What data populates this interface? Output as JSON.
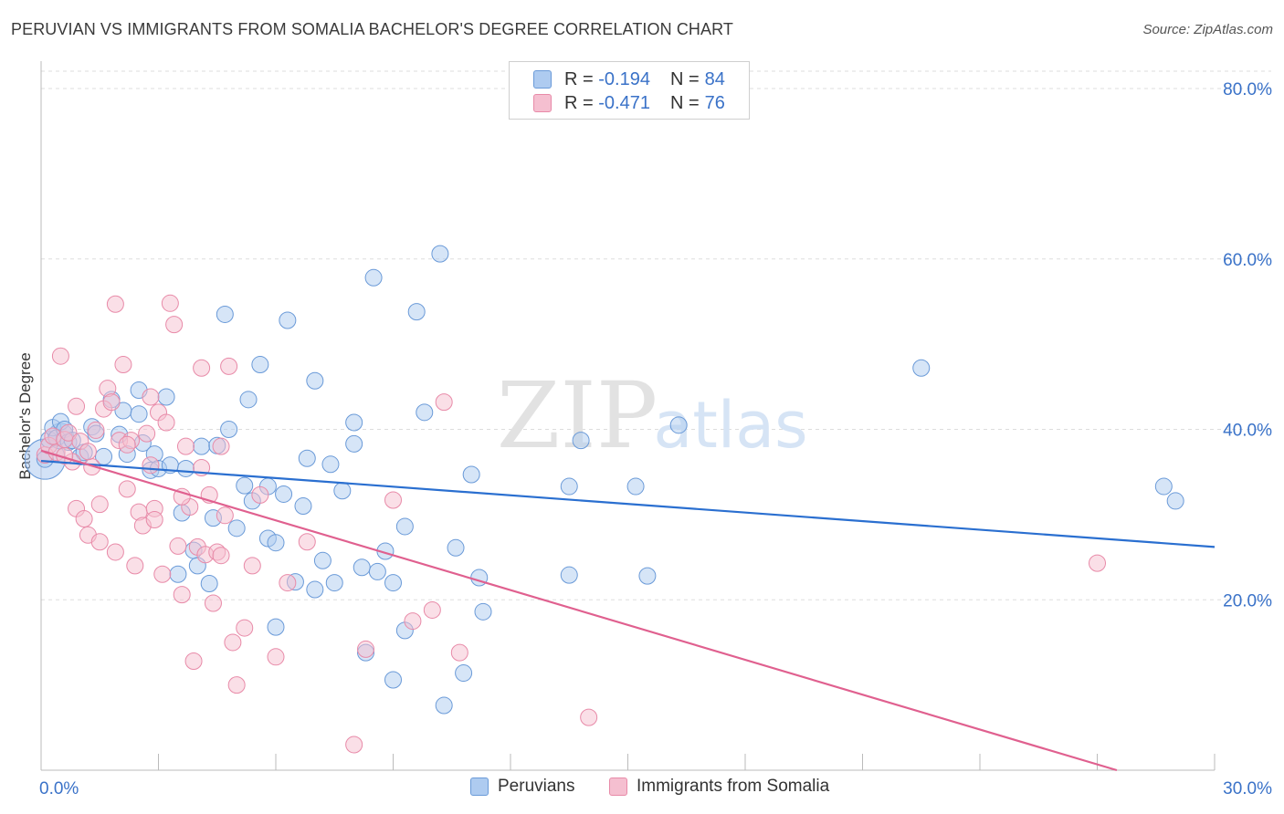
{
  "title": "PERUVIAN VS IMMIGRANTS FROM SOMALIA BACHELOR'S DEGREE CORRELATION CHART",
  "source": "Source: ZipAtlas.com",
  "watermark": {
    "zip": "ZIP",
    "atlas": "atlas"
  },
  "legend": {
    "rows": [
      {
        "r_label": "R =",
        "r_value": "-0.194",
        "n_label": "N =",
        "n_value": "84"
      },
      {
        "r_label": "R =",
        "r_value": "-0.471",
        "n_label": "N =",
        "n_value": "76"
      }
    ]
  },
  "colors": {
    "blue_fill": "#aecbf0",
    "blue_stroke": "#6a9ad8",
    "blue_line": "#2a6fd0",
    "pink_fill": "#f5bfd0",
    "pink_stroke": "#e88aa8",
    "pink_line": "#e0608f",
    "tick_label": "#3a72c8",
    "grid": "#dddddd"
  },
  "chart_data": {
    "type": "scatter",
    "title": "PERUVIAN VS IMMIGRANTS FROM SOMALIA BACHELOR'S DEGREE CORRELATION CHART",
    "xlabel": "",
    "ylabel": "Bachelor's Degree",
    "xlim": [
      0,
      30
    ],
    "ylim": [
      0,
      80
    ],
    "x_tick_labels": [
      "0.0%",
      "30.0%"
    ],
    "y_ticks": [
      20,
      40,
      60,
      80
    ],
    "y_tick_labels": [
      "20.0%",
      "40.0%",
      "60.0%",
      "80.0%"
    ],
    "grid": true,
    "series": [
      {
        "name": "Peruvians",
        "color": "#aecbf0",
        "r": -0.194,
        "n": 84,
        "trend": {
          "x": [
            0,
            30
          ],
          "y": [
            36.3,
            26.2
          ]
        },
        "points": [
          [
            0.1,
            36.5
          ],
          [
            0.2,
            38.8
          ],
          [
            0.3,
            40.2
          ],
          [
            0.4,
            39.0
          ],
          [
            0.5,
            40.9
          ],
          [
            0.6,
            40.0
          ],
          [
            0.7,
            38.5
          ],
          [
            0.8,
            38.7
          ],
          [
            1.0,
            36.8
          ],
          [
            1.1,
            37.3
          ],
          [
            1.3,
            40.3
          ],
          [
            1.4,
            39.5
          ],
          [
            1.6,
            36.8
          ],
          [
            1.8,
            43.5
          ],
          [
            2.0,
            39.4
          ],
          [
            2.1,
            42.2
          ],
          [
            2.2,
            37.1
          ],
          [
            2.5,
            41.8
          ],
          [
            2.5,
            44.6
          ],
          [
            2.6,
            38.4
          ],
          [
            2.8,
            35.2
          ],
          [
            2.9,
            37.1
          ],
          [
            3.0,
            35.4
          ],
          [
            3.2,
            43.8
          ],
          [
            3.3,
            35.8
          ],
          [
            3.5,
            23.0
          ],
          [
            3.6,
            30.2
          ],
          [
            3.7,
            35.4
          ],
          [
            3.9,
            25.8
          ],
          [
            4.0,
            24.0
          ],
          [
            4.1,
            38.0
          ],
          [
            4.3,
            21.9
          ],
          [
            4.4,
            29.6
          ],
          [
            4.5,
            38.1
          ],
          [
            4.7,
            53.5
          ],
          [
            4.8,
            40.0
          ],
          [
            5.0,
            28.4
          ],
          [
            5.2,
            33.4
          ],
          [
            5.3,
            43.5
          ],
          [
            5.4,
            31.6
          ],
          [
            5.6,
            47.6
          ],
          [
            5.8,
            33.3
          ],
          [
            5.8,
            27.2
          ],
          [
            6.0,
            26.7
          ],
          [
            6.0,
            16.8
          ],
          [
            6.2,
            32.4
          ],
          [
            6.3,
            52.8
          ],
          [
            6.5,
            22.1
          ],
          [
            6.7,
            31.0
          ],
          [
            6.8,
            36.6
          ],
          [
            7.0,
            21.2
          ],
          [
            7.0,
            45.7
          ],
          [
            7.2,
            24.6
          ],
          [
            7.4,
            35.9
          ],
          [
            7.5,
            22.0
          ],
          [
            7.7,
            32.8
          ],
          [
            8.0,
            38.3
          ],
          [
            8.0,
            40.8
          ],
          [
            8.2,
            23.8
          ],
          [
            8.3,
            13.8
          ],
          [
            8.5,
            57.8
          ],
          [
            8.6,
            23.3
          ],
          [
            8.8,
            25.7
          ],
          [
            9.0,
            22.0
          ],
          [
            9.0,
            10.6
          ],
          [
            9.3,
            28.6
          ],
          [
            9.3,
            16.4
          ],
          [
            9.6,
            53.8
          ],
          [
            9.8,
            42.0
          ],
          [
            10.2,
            60.6
          ],
          [
            10.3,
            7.6
          ],
          [
            10.6,
            26.1
          ],
          [
            10.8,
            11.4
          ],
          [
            11.0,
            34.7
          ],
          [
            11.2,
            22.6
          ],
          [
            11.3,
            18.6
          ],
          [
            13.5,
            33.3
          ],
          [
            13.5,
            22.9
          ],
          [
            13.8,
            38.7
          ],
          [
            15.2,
            33.3
          ],
          [
            15.5,
            22.8
          ],
          [
            16.3,
            40.5
          ],
          [
            22.5,
            47.2
          ],
          [
            28.7,
            33.3
          ],
          [
            29.0,
            31.6
          ]
        ]
      },
      {
        "name": "Immigrants from Somalia",
        "color": "#f5bfd0",
        "r": -0.471,
        "n": 76,
        "trend": {
          "x": [
            0,
            27.5
          ],
          "y": [
            37.5,
            0
          ]
        },
        "points": [
          [
            0.1,
            37.0
          ],
          [
            0.2,
            38.1
          ],
          [
            0.3,
            39.2
          ],
          [
            0.4,
            37.3
          ],
          [
            0.5,
            48.6
          ],
          [
            0.6,
            38.8
          ],
          [
            0.7,
            39.6
          ],
          [
            0.8,
            36.2
          ],
          [
            0.9,
            42.7
          ],
          [
            0.9,
            30.7
          ],
          [
            1.0,
            38.6
          ],
          [
            1.1,
            29.5
          ],
          [
            1.2,
            27.6
          ],
          [
            1.3,
            35.6
          ],
          [
            1.4,
            39.9
          ],
          [
            1.5,
            31.2
          ],
          [
            1.6,
            42.4
          ],
          [
            1.7,
            44.8
          ],
          [
            1.8,
            43.2
          ],
          [
            1.9,
            25.6
          ],
          [
            1.9,
            54.7
          ],
          [
            2.0,
            38.7
          ],
          [
            2.1,
            47.6
          ],
          [
            2.2,
            33.0
          ],
          [
            2.3,
            38.7
          ],
          [
            2.4,
            24.0
          ],
          [
            2.5,
            30.3
          ],
          [
            2.6,
            28.7
          ],
          [
            2.7,
            39.5
          ],
          [
            2.8,
            43.8
          ],
          [
            2.8,
            35.8
          ],
          [
            2.9,
            30.7
          ],
          [
            3.0,
            42.0
          ],
          [
            3.1,
            23.0
          ],
          [
            3.2,
            40.8
          ],
          [
            3.3,
            54.8
          ],
          [
            3.4,
            52.3
          ],
          [
            3.5,
            26.3
          ],
          [
            3.6,
            20.6
          ],
          [
            3.7,
            38.0
          ],
          [
            3.8,
            30.9
          ],
          [
            3.9,
            12.8
          ],
          [
            4.0,
            26.2
          ],
          [
            4.1,
            47.2
          ],
          [
            4.2,
            25.3
          ],
          [
            4.3,
            32.3
          ],
          [
            4.4,
            19.6
          ],
          [
            4.5,
            25.6
          ],
          [
            4.6,
            38.0
          ],
          [
            4.7,
            29.9
          ],
          [
            4.8,
            47.4
          ],
          [
            4.9,
            15.0
          ],
          [
            5.0,
            10.0
          ],
          [
            5.2,
            16.7
          ],
          [
            5.4,
            24.0
          ],
          [
            5.6,
            32.3
          ],
          [
            6.0,
            13.3
          ],
          [
            6.3,
            22.0
          ],
          [
            6.8,
            26.8
          ],
          [
            8.0,
            3.0
          ],
          [
            8.3,
            14.2
          ],
          [
            9.0,
            31.7
          ],
          [
            9.5,
            17.5
          ],
          [
            10.0,
            18.8
          ],
          [
            10.3,
            43.2
          ],
          [
            10.7,
            13.8
          ],
          [
            14.0,
            6.2
          ],
          [
            27.0,
            24.3
          ],
          [
            1.5,
            26.8
          ],
          [
            2.2,
            38.2
          ],
          [
            3.6,
            32.1
          ],
          [
            4.1,
            35.5
          ],
          [
            1.2,
            37.4
          ],
          [
            0.6,
            36.9
          ],
          [
            2.9,
            29.4
          ],
          [
            4.6,
            25.2
          ]
        ]
      }
    ]
  },
  "bottom_legend": [
    {
      "label": "Peruvians"
    },
    {
      "label": "Immigrants from Somalia"
    }
  ]
}
